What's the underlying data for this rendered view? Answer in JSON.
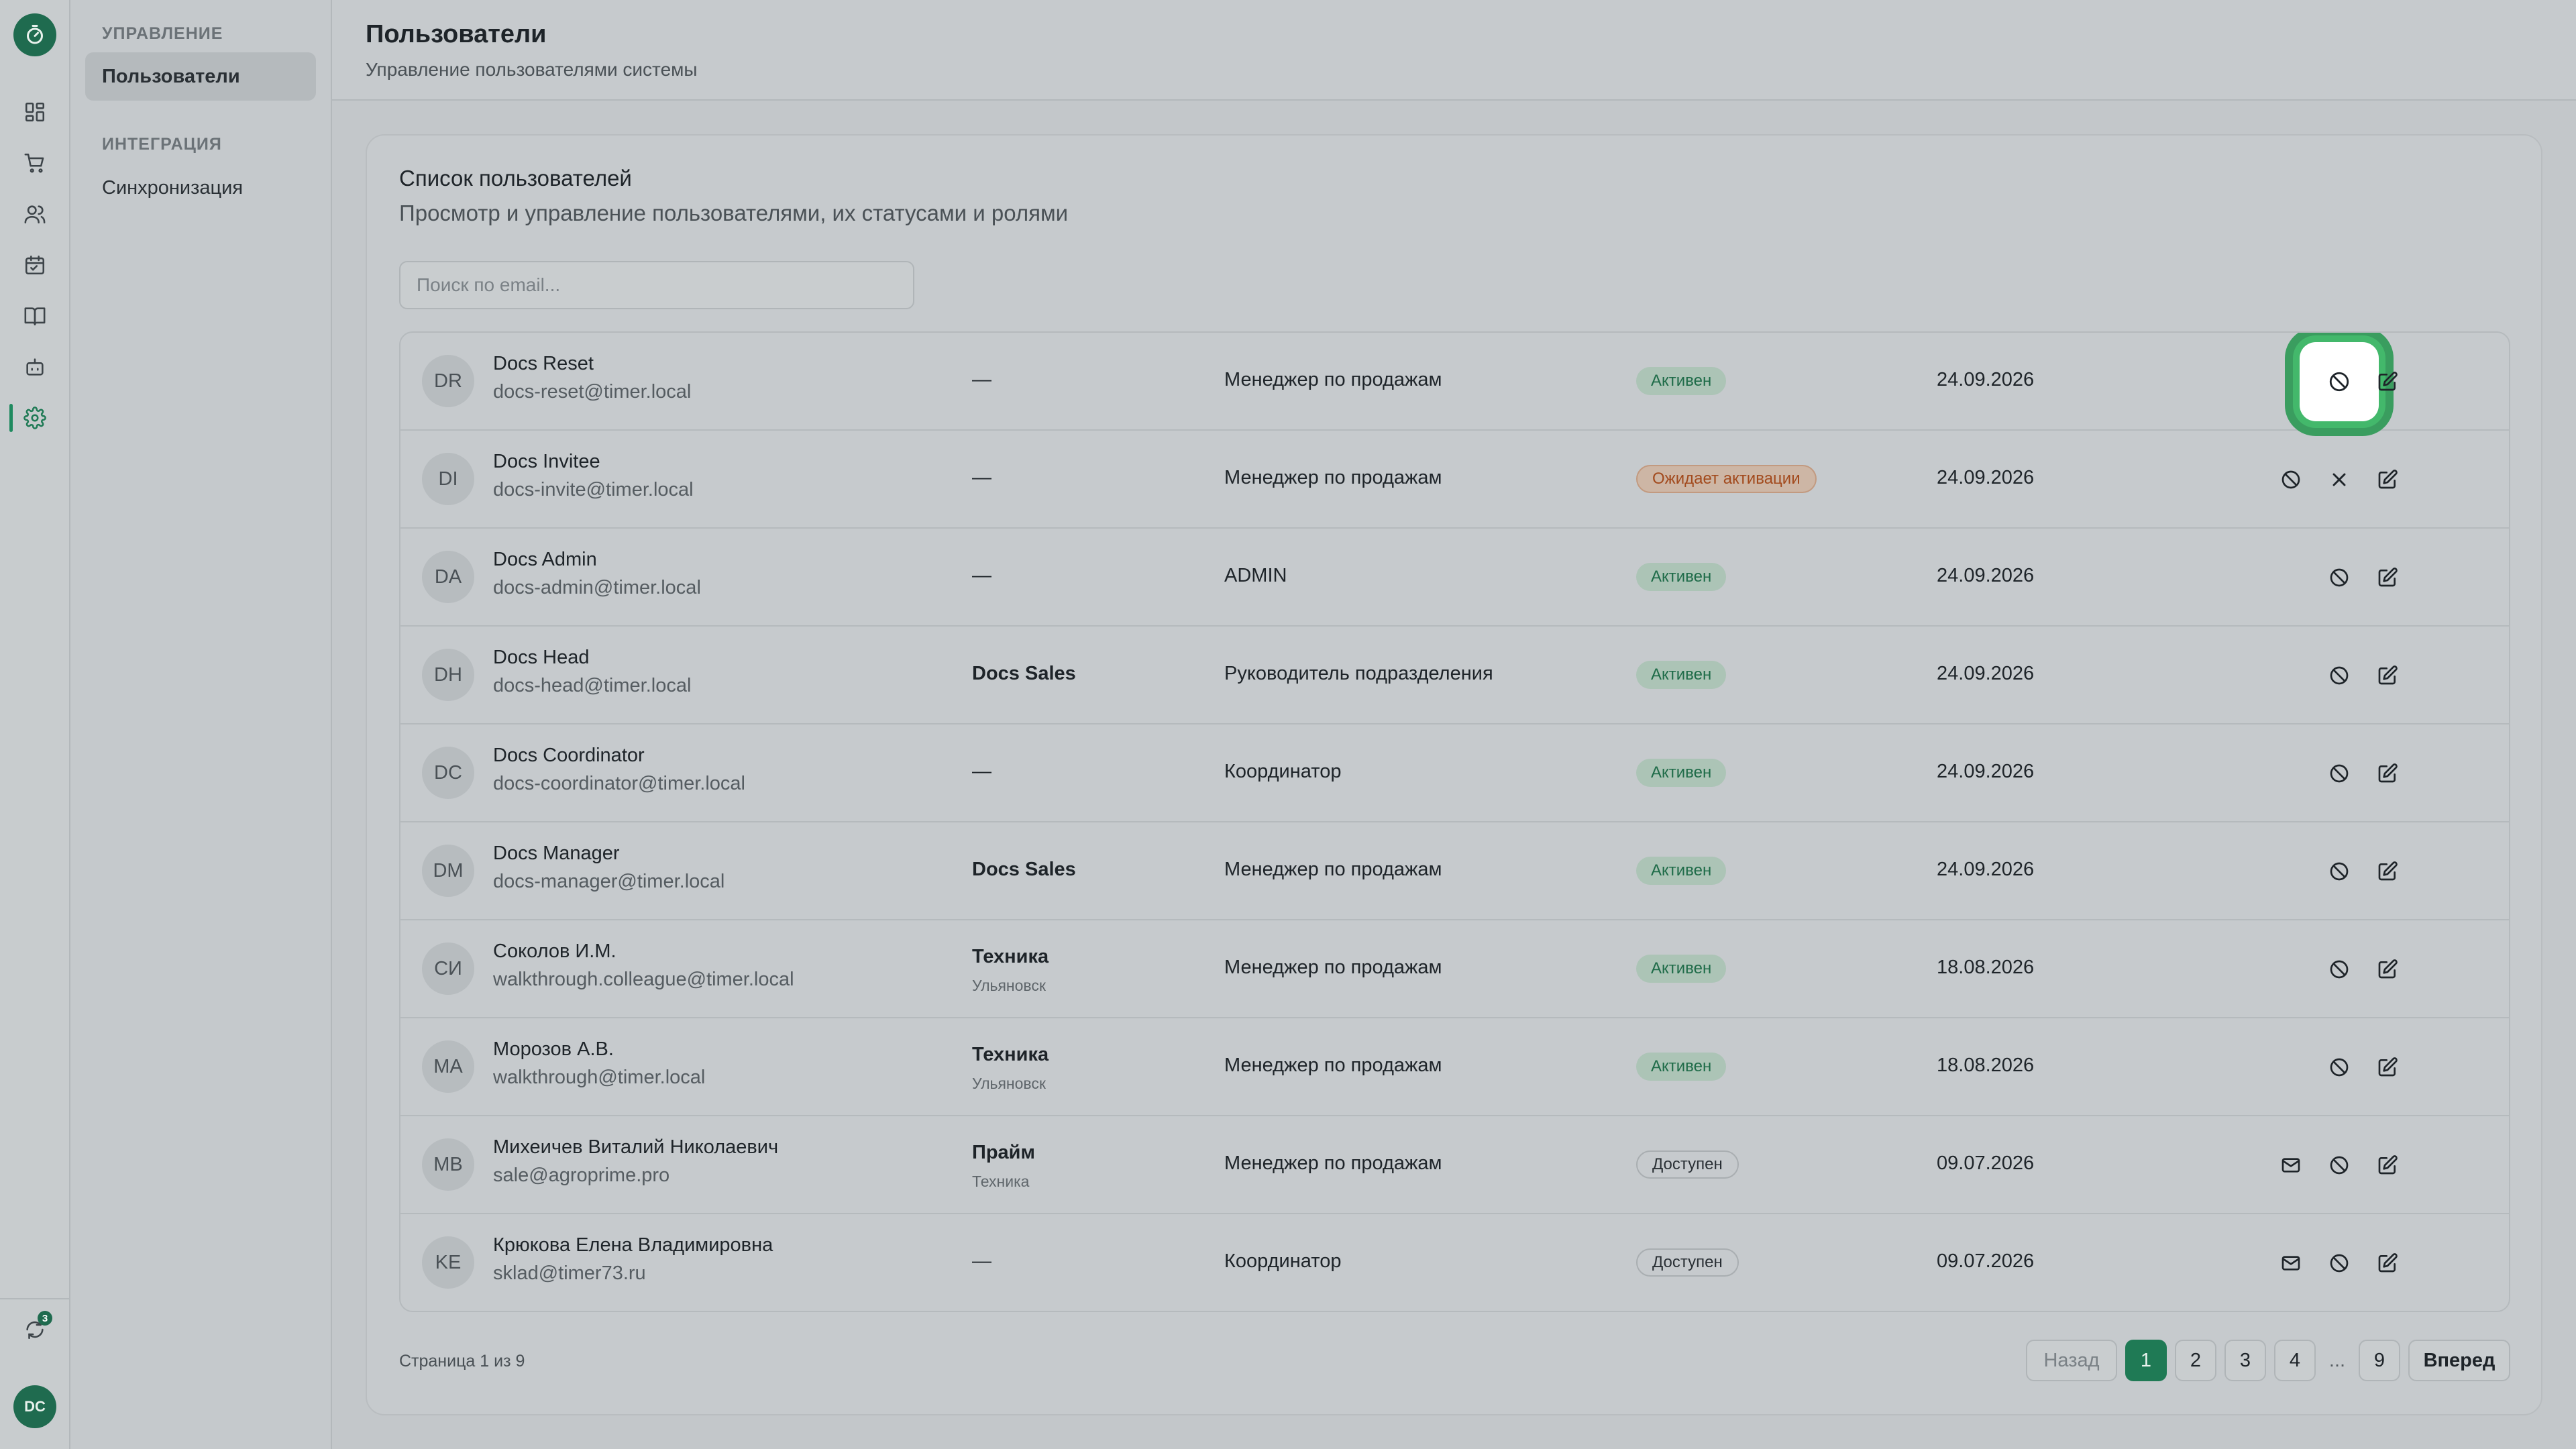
{
  "rail": {
    "items": [
      {
        "name": "dashboard-icon"
      },
      {
        "name": "cart-icon"
      },
      {
        "name": "users-icon"
      },
      {
        "name": "calendar-icon"
      },
      {
        "name": "book-icon"
      },
      {
        "name": "bot-icon"
      },
      {
        "name": "gear-icon",
        "active": true
      }
    ],
    "sync_badge": "3",
    "user_initials": "DC"
  },
  "sidebar": {
    "group_manage": "УПРАВЛЕНИЕ",
    "item_users": "Пользователи",
    "group_integration": "ИНТЕГРАЦИЯ",
    "item_sync": "Синхронизация"
  },
  "header": {
    "title": "Пользователи",
    "subtitle": "Управление пользователями системы"
  },
  "card": {
    "title": "Список пользователей",
    "subtitle": "Просмотр и управление пользователями, их статусами и ролями"
  },
  "search": {
    "placeholder": "Поиск по email..."
  },
  "users": [
    {
      "initials": "DR",
      "name": "Docs Reset",
      "email": "docs-reset@timer.local",
      "dept": "—",
      "dept_sub": "",
      "role": "Менеджер по продажам",
      "status": "Активен",
      "status_kind": "green",
      "date": "24.09.2026",
      "actions": [
        "block",
        "edit"
      ],
      "highlight": true
    },
    {
      "initials": "DI",
      "name": "Docs Invitee",
      "email": "docs-invite@timer.local",
      "dept": "—",
      "dept_sub": "",
      "role": "Менеджер по продажам",
      "status": "Ожидает активации",
      "status_kind": "orange",
      "date": "24.09.2026",
      "actions": [
        "block",
        "cancel",
        "edit"
      ]
    },
    {
      "initials": "DA",
      "name": "Docs Admin",
      "email": "docs-admin@timer.local",
      "dept": "—",
      "dept_sub": "",
      "role": "ADMIN",
      "status": "Активен",
      "status_kind": "green",
      "date": "24.09.2026",
      "actions": [
        "block",
        "edit"
      ]
    },
    {
      "initials": "DH",
      "name": "Docs Head",
      "email": "docs-head@timer.local",
      "dept": "Docs Sales",
      "dept_sub": "",
      "role": "Руководитель подразделения",
      "status": "Активен",
      "status_kind": "green",
      "date": "24.09.2026",
      "actions": [
        "block",
        "edit"
      ]
    },
    {
      "initials": "DC",
      "name": "Docs Coordinator",
      "email": "docs-coordinator@timer.local",
      "dept": "—",
      "dept_sub": "",
      "role": "Координатор",
      "status": "Активен",
      "status_kind": "green",
      "date": "24.09.2026",
      "actions": [
        "block",
        "edit"
      ]
    },
    {
      "initials": "DM",
      "name": "Docs Manager",
      "email": "docs-manager@timer.local",
      "dept": "Docs Sales",
      "dept_sub": "",
      "role": "Менеджер по продажам",
      "status": "Активен",
      "status_kind": "green",
      "date": "24.09.2026",
      "actions": [
        "block",
        "edit"
      ]
    },
    {
      "initials": "СИ",
      "name": "Соколов И.М.",
      "email": "walkthrough.colleague@timer.local",
      "dept": "Техника",
      "dept_sub": "Ульяновск",
      "role": "Менеджер по продажам",
      "status": "Активен",
      "status_kind": "green",
      "date": "18.08.2026",
      "actions": [
        "block",
        "edit"
      ]
    },
    {
      "initials": "MA",
      "name": "Морозов А.В.",
      "email": "walkthrough@timer.local",
      "dept": "Техника",
      "dept_sub": "Ульяновск",
      "role": "Менеджер по продажам",
      "status": "Активен",
      "status_kind": "green",
      "date": "18.08.2026",
      "actions": [
        "block",
        "edit"
      ]
    },
    {
      "initials": "MB",
      "name": "Михеичев Виталий Николаевич",
      "email": "sale@agroprime.pro",
      "dept": "Прайм",
      "dept_sub": "Техника",
      "role": "Менеджер по продажам",
      "status": "Доступен",
      "status_kind": "gray",
      "date": "09.07.2026",
      "actions": [
        "mail",
        "block",
        "edit"
      ]
    },
    {
      "initials": "KE",
      "name": "Крюкова Елена Владимировна",
      "email": "sklad@timer73.ru",
      "dept": "—",
      "dept_sub": "",
      "role": "Координатор",
      "status": "Доступен",
      "status_kind": "gray",
      "date": "09.07.2026",
      "actions": [
        "mail",
        "block",
        "edit"
      ]
    }
  ],
  "pagination": {
    "summary": "Страница 1 из 9",
    "prev": "Назад",
    "pages": [
      "1",
      "2",
      "3",
      "4"
    ],
    "ellipsis": "...",
    "last": "9",
    "next": "Вперед",
    "current": "1"
  },
  "colors": {
    "accent": "#1f7a55",
    "highlight_ring": "#43b86b"
  }
}
